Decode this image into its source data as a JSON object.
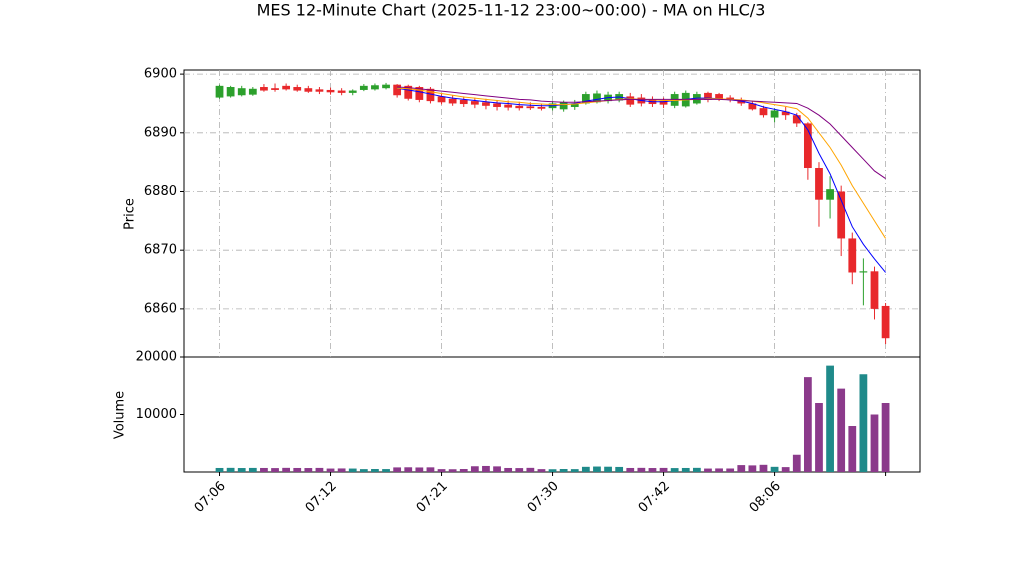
{
  "chart_data": {
    "type": "candlestick",
    "title": "MES 12-Minute Chart (2025-11-12 23:00~00:00) - MA on HLC/3",
    "ylabel": "Price",
    "volume_label": "Volume",
    "up_color": "#2ca02c",
    "down_color": "#e8282b",
    "volume_up_color": "#1f8a8a",
    "volume_down_color": "#8b3a8b",
    "grid": true,
    "xlim": [
      -3.2,
      63.1
    ],
    "xticks": [
      {
        "value": 0,
        "label": "07:06"
      },
      {
        "value": 10,
        "label": "07:12"
      },
      {
        "value": 20,
        "label": "07:21"
      },
      {
        "value": 30,
        "label": "07:30"
      },
      {
        "value": 40,
        "label": "07:42"
      },
      {
        "value": 50,
        "label": "08:06"
      },
      {
        "value": 60,
        "label": null
      }
    ],
    "ylim": [
      6851.8,
      6900.7
    ],
    "yticks": [
      6860,
      6870,
      6880,
      6890,
      6900
    ],
    "volume_ylim": [
      0,
      20000
    ],
    "volume_yticks": [
      10000,
      20000
    ],
    "open": [
      6896.0,
      6896.2,
      6896.4,
      6896.5,
      6897.8,
      6897.6,
      6898.0,
      6897.8,
      6897.6,
      6897.4,
      6897.3,
      6897.2,
      6896.8,
      6897.3,
      6897.4,
      6897.6,
      6898.2,
      6898.0,
      6897.8,
      6897.5,
      6896.2,
      6895.8,
      6895.6,
      6895.4,
      6895.2,
      6895.0,
      6894.8,
      6894.6,
      6894.5,
      6894.4,
      6894.2,
      6894.0,
      6894.4,
      6895.0,
      6895.2,
      6895.4,
      6895.5,
      6896.2,
      6896.0,
      6895.6,
      6895.4,
      6894.6,
      6894.5,
      6895.0,
      6896.8,
      6896.6,
      6896.0,
      6895.6,
      6895.0,
      6894.2,
      6892.6,
      6893.6,
      6893.0,
      6891.6,
      6884.0,
      6878.6,
      6880.0,
      6872.0,
      6866.2,
      6866.4,
      6860.5
    ],
    "high": [
      6898.2,
      6898.0,
      6898.0,
      6897.8,
      6898.3,
      6898.4,
      6898.4,
      6898.2,
      6898.0,
      6897.8,
      6897.7,
      6897.6,
      6897.4,
      6898.3,
      6898.4,
      6898.5,
      6898.3,
      6898.2,
      6898.0,
      6897.8,
      6896.6,
      6896.4,
      6896.2,
      6896.0,
      6895.8,
      6895.6,
      6895.5,
      6895.3,
      6895.2,
      6895.0,
      6895.4,
      6895.5,
      6895.6,
      6897.0,
      6897.2,
      6897.0,
      6897.0,
      6896.8,
      6896.6,
      6896.2,
      6896.0,
      6897.0,
      6897.2,
      6897.0,
      6897.0,
      6896.8,
      6896.4,
      6896.0,
      6895.4,
      6894.6,
      6894.2,
      6894.4,
      6893.4,
      6891.8,
      6885.0,
      6882.6,
      6881.0,
      6873.0,
      6868.6,
      6867.2,
      6861.0
    ],
    "low": [
      6895.8,
      6896.0,
      6896.2,
      6896.3,
      6897.0,
      6897.0,
      6897.2,
      6897.0,
      6896.8,
      6896.6,
      6896.5,
      6896.4,
      6896.4,
      6897.1,
      6897.2,
      6897.4,
      6896.0,
      6895.5,
      6895.2,
      6895.0,
      6894.8,
      6894.6,
      6894.4,
      6894.2,
      6894.0,
      6893.8,
      6893.8,
      6893.8,
      6893.9,
      6893.8,
      6893.8,
      6893.6,
      6893.9,
      6894.8,
      6895.0,
      6895.0,
      6895.2,
      6894.4,
      6894.5,
      6894.4,
      6894.2,
      6894.2,
      6894.3,
      6894.8,
      6895.2,
      6895.4,
      6895.2,
      6894.6,
      6893.8,
      6892.6,
      6891.8,
      6892.2,
      6891.0,
      6882.0,
      6874.0,
      6875.4,
      6869.0,
      6864.2,
      6860.6,
      6858.2,
      6854.0
    ],
    "close": [
      6898.0,
      6897.8,
      6897.6,
      6897.5,
      6897.2,
      6897.3,
      6897.4,
      6897.2,
      6897.0,
      6897.0,
      6896.9,
      6896.8,
      6897.2,
      6898.0,
      6898.1,
      6898.2,
      6896.4,
      6895.8,
      6895.6,
      6895.4,
      6895.2,
      6895.0,
      6894.9,
      6894.8,
      6894.6,
      6894.4,
      6894.3,
      6894.2,
      6894.2,
      6894.1,
      6895.0,
      6895.2,
      6895.0,
      6896.6,
      6896.7,
      6896.5,
      6896.6,
      6894.8,
      6895.0,
      6894.9,
      6894.8,
      6896.6,
      6896.8,
      6896.6,
      6895.6,
      6895.8,
      6895.6,
      6895.0,
      6894.0,
      6893.0,
      6893.8,
      6893.0,
      6891.6,
      6884.0,
      6878.6,
      6880.4,
      6872.0,
      6866.2,
      6866.4,
      6860.0,
      6855.0
    ],
    "volume": [
      700,
      720,
      690,
      710,
      700,
      680,
      720,
      700,
      690,
      710,
      600,
      620,
      600,
      500,
      520,
      510,
      800,
      820,
      790,
      810,
      500,
      480,
      520,
      1000,
      1050,
      980,
      700,
      680,
      720,
      500,
      480,
      520,
      500,
      900,
      950,
      920,
      880,
      700,
      720,
      690,
      710,
      680,
      700,
      720,
      600,
      620,
      610,
      1200,
      1150,
      1250,
      900,
      850,
      3000,
      16500,
      12000,
      18500,
      14500,
      8000,
      17000,
      10000,
      12000
    ],
    "ma_series": [
      {
        "color": "#0000ff",
        "values": [
          null,
          null,
          null,
          null,
          null,
          null,
          null,
          null,
          null,
          null,
          null,
          null,
          null,
          null,
          null,
          null,
          6897.6,
          6897.3,
          6897.0,
          6896.6,
          6896.2,
          6895.9,
          6895.7,
          6895.5,
          6895.3,
          6895.1,
          6895.0,
          6894.8,
          6894.7,
          6894.6,
          6894.6,
          6894.8,
          6895.0,
          6895.4,
          6895.7,
          6896.0,
          6896.1,
          6895.8,
          6895.5,
          6895.3,
          6895.3,
          6895.5,
          6895.7,
          6895.9,
          6895.9,
          6895.8,
          6895.6,
          6895.4,
          6895.0,
          6894.4,
          6894.0,
          6893.6,
          6893.0,
          6890.5,
          6886.5,
          6883.0,
          6878.5,
          6874.0,
          6871.0,
          6868.5,
          6866.2
        ]
      },
      {
        "color": "#ffa500",
        "values": [
          null,
          null,
          null,
          null,
          null,
          null,
          null,
          null,
          null,
          null,
          null,
          null,
          null,
          null,
          null,
          null,
          6897.6,
          6897.5,
          6897.3,
          6897.0,
          6896.7,
          6896.4,
          6896.1,
          6895.9,
          6895.7,
          6895.5,
          6895.3,
          6895.2,
          6895.0,
          6894.9,
          6894.8,
          6894.8,
          6894.9,
          6895.1,
          6895.3,
          6895.5,
          6895.7,
          6895.8,
          6895.7,
          6895.6,
          6895.5,
          6895.5,
          6895.6,
          6895.7,
          6895.8,
          6895.8,
          6895.7,
          6895.6,
          6895.4,
          6895.1,
          6894.8,
          6894.5,
          6894.1,
          6892.5,
          6890.0,
          6887.5,
          6884.5,
          6881.0,
          6878.0,
          6875.0,
          6872.0
        ]
      },
      {
        "color": "#800080",
        "values": [
          null,
          null,
          null,
          null,
          null,
          null,
          null,
          null,
          null,
          null,
          null,
          null,
          null,
          null,
          null,
          null,
          6897.8,
          6897.7,
          6897.5,
          6897.3,
          6897.1,
          6896.9,
          6896.7,
          6896.5,
          6896.3,
          6896.1,
          6895.9,
          6895.7,
          6895.6,
          6895.4,
          6895.3,
          6895.2,
          6895.2,
          6895.3,
          6895.4,
          6895.5,
          6895.6,
          6895.7,
          6895.7,
          6895.7,
          6895.7,
          6895.7,
          6895.7,
          6895.7,
          6895.7,
          6895.7,
          6895.6,
          6895.5,
          6895.4,
          6895.3,
          6895.2,
          6895.1,
          6895.0,
          6894.2,
          6893.0,
          6891.5,
          6889.5,
          6887.5,
          6885.5,
          6883.5,
          6882.2
        ]
      }
    ]
  }
}
